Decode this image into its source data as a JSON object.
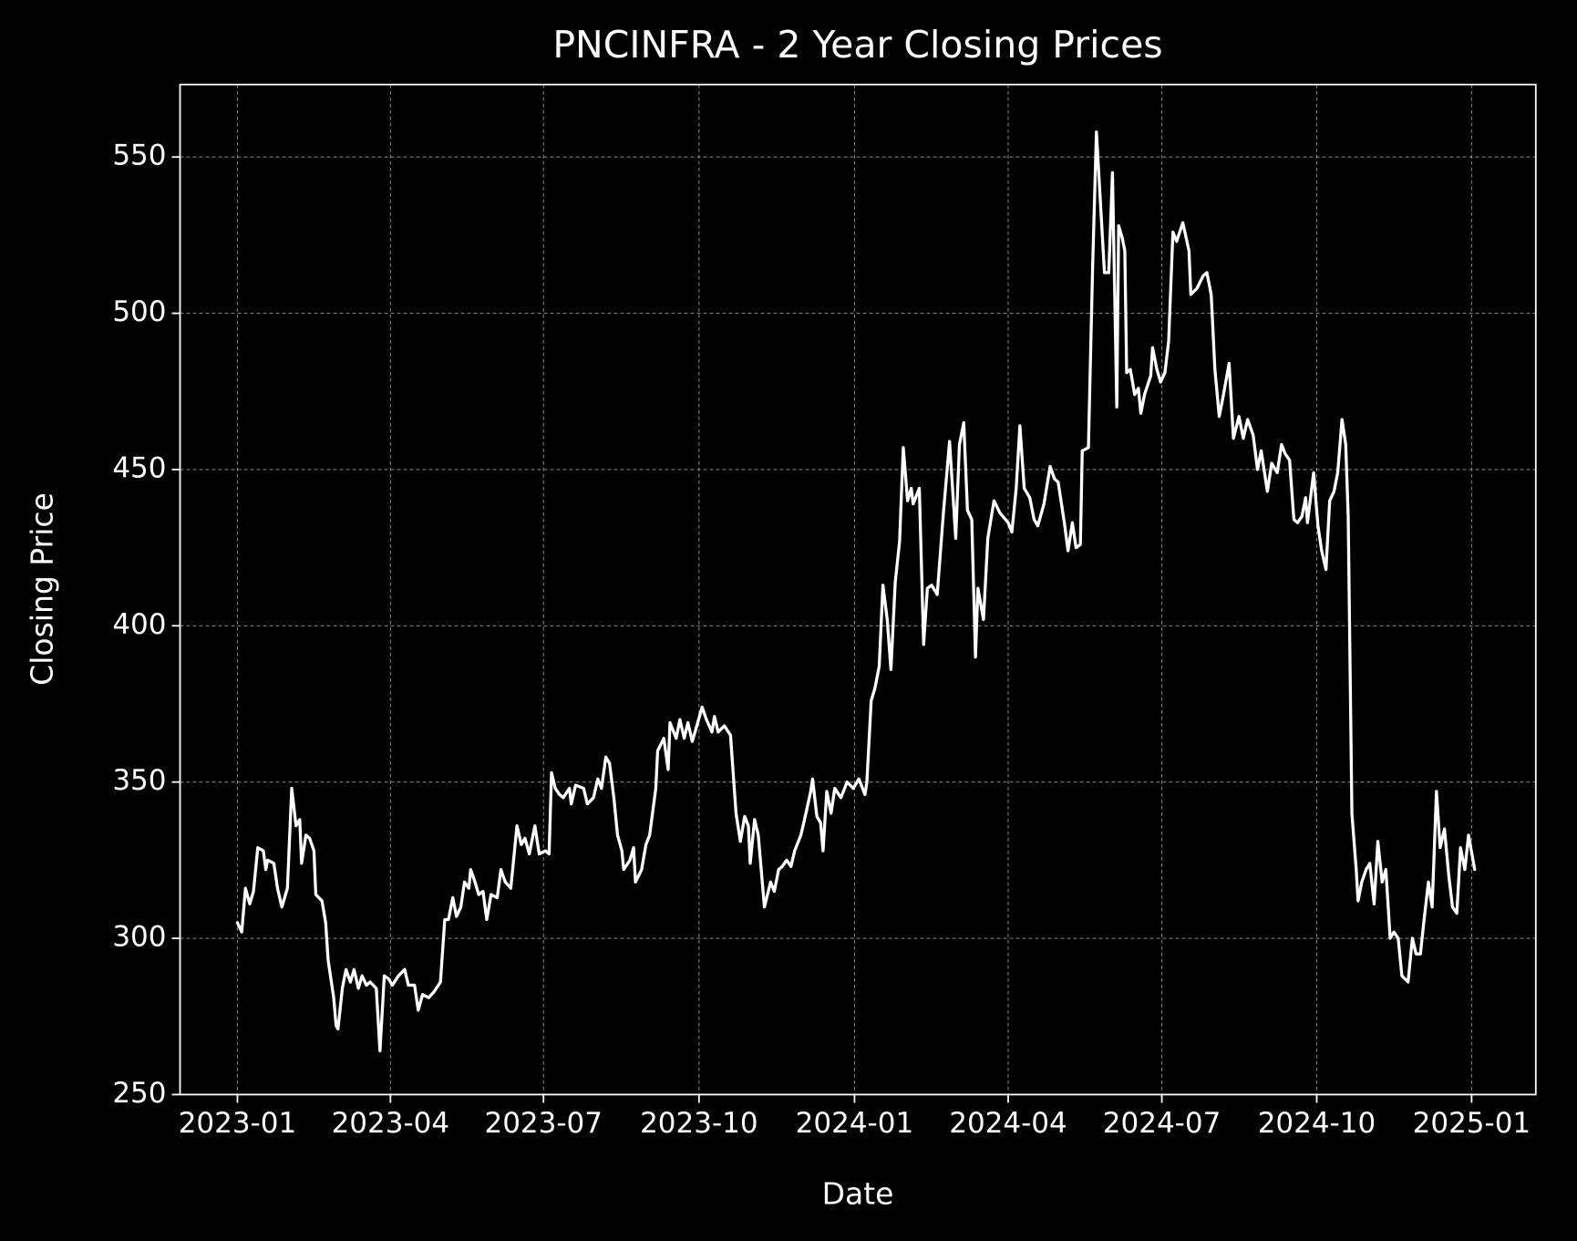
{
  "chart_data": {
    "type": "line",
    "title": "PNCINFRA - 2 Year Closing Prices",
    "xlabel": "Date",
    "ylabel": "Closing Price",
    "color": "#ffffff",
    "grid": true,
    "xlim": [
      2022.907,
      2025.104
    ],
    "ylim": [
      250,
      573.2
    ],
    "xticks": [
      {
        "value": 2023.0,
        "label": "2023-01"
      },
      {
        "value": 2023.248,
        "label": "2023-04"
      },
      {
        "value": 2023.496,
        "label": "2023-07"
      },
      {
        "value": 2023.748,
        "label": "2023-10"
      },
      {
        "value": 2024.0,
        "label": "2024-01"
      },
      {
        "value": 2024.249,
        "label": "2024-04"
      },
      {
        "value": 2024.498,
        "label": "2024-07"
      },
      {
        "value": 2024.749,
        "label": "2024-10"
      },
      {
        "value": 2025.0,
        "label": "2025-01"
      }
    ],
    "yticks": [
      250,
      300,
      350,
      400,
      450,
      500,
      550
    ],
    "x": [
      2023.0,
      2023.007,
      2023.013,
      2023.02,
      2023.026,
      2023.033,
      2023.042,
      2023.046,
      2023.049,
      2023.059,
      2023.065,
      2023.072,
      2023.081,
      2023.088,
      2023.095,
      2023.101,
      2023.104,
      2023.111,
      2023.117,
      2023.124,
      2023.127,
      2023.137,
      2023.143,
      2023.147,
      2023.156,
      2023.16,
      2023.163,
      2023.17,
      2023.176,
      2023.183,
      2023.189,
      2023.196,
      2023.202,
      2023.209,
      2023.215,
      2023.225,
      2023.231,
      2023.238,
      2023.245,
      2023.251,
      2023.261,
      2023.271,
      2023.277,
      2023.287,
      2023.293,
      2023.3,
      2023.31,
      2023.319,
      2023.329,
      2023.336,
      2023.342,
      2023.349,
      2023.355,
      2023.362,
      2023.368,
      2023.375,
      2023.378,
      2023.385,
      2023.391,
      2023.398,
      2023.404,
      2023.411,
      2023.421,
      2023.427,
      2023.434,
      2023.443,
      2023.453,
      2023.46,
      2023.466,
      2023.473,
      2023.482,
      2023.489,
      2023.499,
      2023.505,
      2023.509,
      2023.515,
      2023.522,
      2023.528,
      2023.538,
      2023.541,
      2023.548,
      2023.561,
      2023.567,
      2023.577,
      2023.584,
      2023.59,
      2023.597,
      2023.603,
      2023.61,
      2023.616,
      2023.623,
      2023.626,
      2023.636,
      2023.642,
      2023.645,
      2023.655,
      2023.662,
      2023.668,
      2023.678,
      2023.681,
      2023.691,
      2023.698,
      2023.701,
      2023.711,
      2023.717,
      2023.724,
      2023.73,
      2023.737,
      2023.743,
      2023.753,
      2023.76,
      2023.769,
      2023.773,
      2023.779,
      2023.789,
      2023.799,
      2023.808,
      2023.815,
      2023.822,
      2023.828,
      2023.831,
      2023.838,
      2023.844,
      2023.854,
      2023.864,
      2023.87,
      2023.877,
      2023.883,
      2023.89,
      2023.897,
      2023.903,
      2023.913,
      2023.919,
      2023.929,
      2023.932,
      2023.939,
      2023.945,
      2023.949,
      2023.955,
      2023.962,
      2023.968,
      2023.978,
      2023.988,
      2023.998,
      2024.007,
      2024.017,
      2024.02,
      2024.027,
      2024.033,
      2024.04,
      2024.046,
      2024.053,
      2024.059,
      2024.066,
      2024.073,
      2024.079,
      2024.086,
      2024.092,
      2024.095,
      2024.105,
      2024.112,
      2024.118,
      2024.125,
      2024.134,
      2024.144,
      2024.154,
      2024.164,
      2024.17,
      2024.177,
      2024.183,
      2024.19,
      2024.196,
      2024.2,
      2024.209,
      2024.216,
      2024.226,
      2024.236,
      2024.249,
      2024.255,
      2024.262,
      2024.268,
      2024.275,
      2024.284,
      2024.291,
      2024.297,
      2024.307,
      2024.317,
      2024.324,
      2024.33,
      2024.34,
      2024.346,
      2024.353,
      2024.359,
      2024.366,
      2024.369,
      2024.379,
      2024.386,
      2024.392,
      2024.405,
      2024.412,
      2024.418,
      2024.425,
      2024.428,
      2024.434,
      2024.438,
      2024.441,
      2024.447,
      2024.454,
      2024.46,
      2024.464,
      2024.47,
      2024.48,
      2024.483,
      2024.49,
      2024.496,
      2024.503,
      2024.509,
      2024.516,
      2024.522,
      2024.532,
      2024.542,
      2024.545,
      2024.555,
      2024.565,
      2024.571,
      2024.578,
      2024.584,
      2024.591,
      2024.597,
      2024.607,
      2024.614,
      2024.623,
      2024.63,
      2024.637,
      2024.646,
      2024.653,
      2024.659,
      2024.669,
      2024.676,
      2024.685,
      2024.692,
      2024.698,
      2024.705,
      2024.712,
      2024.718,
      2024.725,
      2024.731,
      2024.734,
      2024.744,
      2024.751,
      2024.757,
      2024.764,
      2024.77,
      2024.777,
      2024.783,
      2024.79,
      2024.796,
      2024.8,
      2024.806,
      2024.813,
      2024.816,
      2024.822,
      2024.829,
      2024.835,
      2024.842,
      2024.848,
      2024.855,
      2024.861,
      2024.868,
      2024.874,
      2024.881,
      2024.887,
      2024.897,
      2024.904,
      2024.91,
      2024.917,
      2024.923,
      2024.93,
      2024.936,
      2024.943,
      2024.949,
      2024.956,
      2024.963,
      2024.969,
      2024.976,
      2024.982,
      2024.989,
      2024.995,
      2025.005
    ],
    "values": [
      305,
      302,
      316,
      311,
      315,
      329,
      328,
      322,
      325,
      324,
      316,
      310,
      316,
      348,
      336,
      338,
      324,
      333,
      332,
      328,
      314,
      312,
      305,
      293,
      281,
      272,
      271,
      284,
      290,
      286,
      290,
      284,
      288,
      285,
      286,
      284,
      264,
      288,
      287,
      285,
      288,
      290,
      285,
      285,
      277,
      282,
      281,
      283,
      286,
      306,
      306,
      313,
      307,
      310,
      318,
      316,
      322,
      318,
      314,
      315,
      306,
      314,
      313,
      322,
      318,
      316,
      336,
      330,
      332,
      327,
      336,
      327,
      328,
      327,
      353,
      348,
      346,
      345,
      348,
      343,
      349,
      348,
      343,
      345,
      351,
      348,
      358,
      356,
      345,
      333,
      328,
      322,
      325,
      329,
      318,
      322,
      330,
      333,
      348,
      360,
      364,
      354,
      369,
      364,
      370,
      364,
      369,
      363,
      367,
      374,
      370,
      366,
      371,
      366,
      368,
      365,
      340,
      331,
      339,
      336,
      324,
      338,
      333,
      310,
      318,
      315,
      322,
      323,
      325,
      323,
      328,
      333,
      338,
      347,
      351,
      339,
      337,
      328,
      347,
      340,
      348,
      345,
      350,
      348,
      351,
      346,
      350,
      376,
      380,
      387,
      413,
      402,
      386,
      414,
      427,
      457,
      440,
      444,
      439,
      444,
      394,
      412,
      413,
      410,
      436,
      459,
      428,
      458,
      465,
      437,
      434,
      390,
      412,
      402,
      428,
      440,
      436,
      433,
      430,
      444,
      464,
      444,
      441,
      434,
      432,
      439,
      451,
      447,
      446,
      433,
      424,
      433,
      425,
      426,
      456,
      457,
      516,
      558,
      513,
      513,
      545,
      470,
      528,
      524,
      520,
      481,
      482,
      474,
      476,
      468,
      474,
      480,
      489,
      482,
      478,
      481,
      491,
      526,
      523,
      529,
      520,
      506,
      508,
      512,
      513,
      506,
      482,
      467,
      473,
      484,
      460,
      467,
      460,
      466,
      461,
      450,
      456,
      443,
      452,
      449,
      458,
      455,
      453,
      434,
      433,
      435,
      441,
      433,
      449,
      432,
      424,
      418,
      440,
      443,
      449,
      466,
      458,
      435,
      340,
      322,
      312,
      318,
      322,
      324,
      311,
      331,
      318,
      322,
      300,
      302,
      300,
      288,
      286,
      300,
      295,
      295,
      306,
      318,
      310,
      347,
      329,
      335,
      320,
      310,
      308,
      329,
      322,
      333,
      322
    ]
  }
}
